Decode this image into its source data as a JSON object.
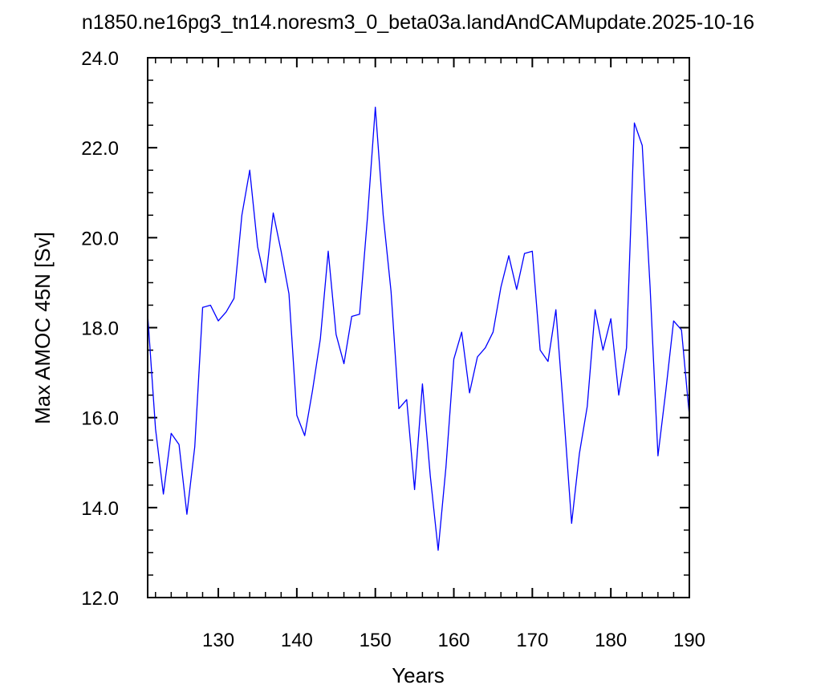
{
  "chart_data": {
    "type": "line",
    "title": "n1850.ne16pg3_tn14.noresm3_0_beta03a.landAndCAMupdate.2025-10-16",
    "xlabel": "Years",
    "ylabel": "Max AMOC 45N [Sv]",
    "xlim": [
      121,
      190
    ],
    "ylim": [
      12.0,
      24.0
    ],
    "xticks": [
      130,
      140,
      150,
      160,
      170,
      180,
      190
    ],
    "xtick_labels": [
      "130",
      "140",
      "150",
      "160",
      "170",
      "180",
      "190"
    ],
    "yticks": [
      12,
      14,
      16,
      18,
      20,
      22,
      24
    ],
    "ytick_labels": [
      "12.0",
      "14.0",
      "16.0",
      "18.0",
      "20.0",
      "22.0",
      "24.0"
    ],
    "grid": false,
    "line_color": "#0000ff",
    "x": [
      121,
      122,
      123,
      124,
      125,
      126,
      127,
      128,
      129,
      130,
      131,
      132,
      133,
      134,
      135,
      136,
      137,
      138,
      139,
      140,
      141,
      142,
      143,
      144,
      145,
      146,
      147,
      148,
      149,
      150,
      151,
      152,
      153,
      154,
      155,
      156,
      157,
      158,
      159,
      160,
      161,
      162,
      163,
      164,
      165,
      166,
      167,
      168,
      169,
      170,
      171,
      172,
      173,
      174,
      175,
      176,
      177,
      178,
      179,
      180,
      181,
      182,
      183,
      184,
      185,
      186,
      187,
      188,
      189,
      190
    ],
    "y": [
      18.3,
      15.75,
      14.3,
      15.65,
      15.4,
      13.85,
      15.35,
      18.45,
      18.5,
      18.15,
      18.35,
      18.65,
      20.5,
      21.5,
      19.8,
      19.0,
      20.55,
      19.7,
      18.75,
      16.05,
      15.6,
      16.6,
      17.75,
      19.7,
      17.85,
      17.2,
      18.25,
      18.3,
      20.45,
      22.9,
      20.5,
      18.8,
      16.2,
      16.4,
      14.4,
      16.75,
      14.7,
      13.05,
      14.9,
      17.3,
      17.9,
      16.55,
      17.35,
      17.55,
      17.9,
      18.9,
      19.6,
      18.85,
      19.65,
      19.7,
      17.5,
      17.25,
      18.4,
      16.1,
      13.65,
      15.2,
      16.25,
      18.4,
      17.5,
      18.2,
      16.5,
      17.55,
      22.55,
      22.05,
      18.9,
      15.15,
      16.6,
      18.15,
      17.95,
      16.05
    ]
  }
}
